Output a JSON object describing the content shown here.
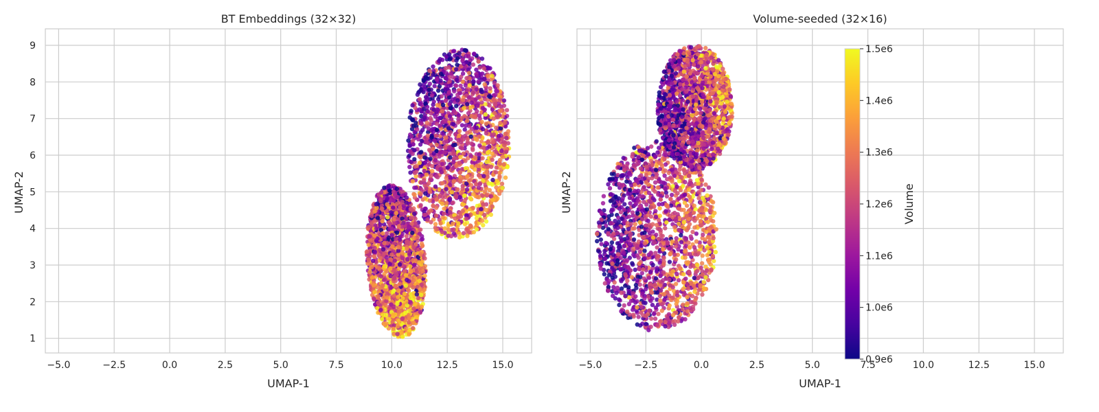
{
  "chart_data": [
    {
      "type": "scatter",
      "title": "BT Embeddings (32×32)",
      "xlabel": "UMAP-1",
      "ylabel": "UMAP-2",
      "xlim": [
        -5.6,
        16.3
      ],
      "ylim": [
        0.6,
        9.45
      ],
      "xticks": [
        -5.0,
        -2.5,
        0.0,
        2.5,
        5.0,
        7.5,
        10.0,
        12.5,
        15.0
      ],
      "xtick_labels": [
        "−5.0",
        "−2.5",
        "0.0",
        "2.5",
        "5.0",
        "7.5",
        "10.0",
        "12.5",
        "15.0"
      ],
      "yticks": [
        1,
        2,
        3,
        4,
        5,
        6,
        7,
        8,
        9
      ],
      "ytick_labels": [
        "1",
        "2",
        "3",
        "4",
        "5",
        "6",
        "7",
        "8",
        "9"
      ],
      "grid": true,
      "colormap": "plasma",
      "color_variable": "Volume",
      "clusters": [
        {
          "cx": 13.0,
          "cy": 6.3,
          "rx": 2.3,
          "ry": 2.6,
          "rotation_deg": -10,
          "volume_trend": "higher toward lower-right"
        },
        {
          "cx": 10.2,
          "cy": 3.1,
          "rx": 1.3,
          "ry": 2.1,
          "rotation_deg": 10,
          "volume_trend": "higher toward bottom"
        }
      ]
    },
    {
      "type": "scatter",
      "title": "Volume-seeded (32×16)",
      "xlabel": "UMAP-1",
      "ylabel": "UMAP-2",
      "xlim": [
        -5.6,
        16.3
      ],
      "ylim": [
        0.6,
        9.45
      ],
      "xticks": [
        -5.0,
        -2.5,
        0.0,
        2.5,
        5.0,
        7.5,
        10.0,
        12.5,
        15.0
      ],
      "xtick_labels": [
        "−5.0",
        "−2.5",
        "0.0",
        "2.5",
        "5.0",
        "7.5",
        "10.0",
        "12.5",
        "15.0"
      ],
      "yticks": [
        1,
        2,
        3,
        4,
        5,
        6,
        7,
        8,
        9
      ],
      "shared_y": true,
      "grid": true,
      "colormap": "plasma",
      "color_variable": "Volume",
      "clusters": [
        {
          "cx": -2.0,
          "cy": 3.8,
          "rx": 2.7,
          "ry": 2.6,
          "rotation_deg": 5,
          "volume_trend": "higher toward right"
        },
        {
          "cx": -0.3,
          "cy": 7.3,
          "rx": 1.7,
          "ry": 1.7,
          "rotation_deg": 20,
          "volume_trend": "higher toward right"
        }
      ],
      "colorbar": {
        "label": "Volume",
        "min": 900000,
        "max": 1500000,
        "ticks": [
          900000,
          1000000,
          1100000,
          1200000,
          1300000,
          1400000,
          1500000
        ],
        "tick_labels": [
          "0.9e6",
          "1.0e6",
          "1.1e6",
          "1.2e6",
          "1.3e6",
          "1.4e6",
          "1.5e6"
        ]
      }
    }
  ],
  "colors": {
    "grid": "#cccccc",
    "spine": "#cccccc",
    "plasma": [
      "#0d0887",
      "#46039f",
      "#7201a8",
      "#9c179e",
      "#bd3786",
      "#d8576b",
      "#ed7953",
      "#fb9f3a",
      "#fdca26",
      "#f0f921"
    ]
  }
}
